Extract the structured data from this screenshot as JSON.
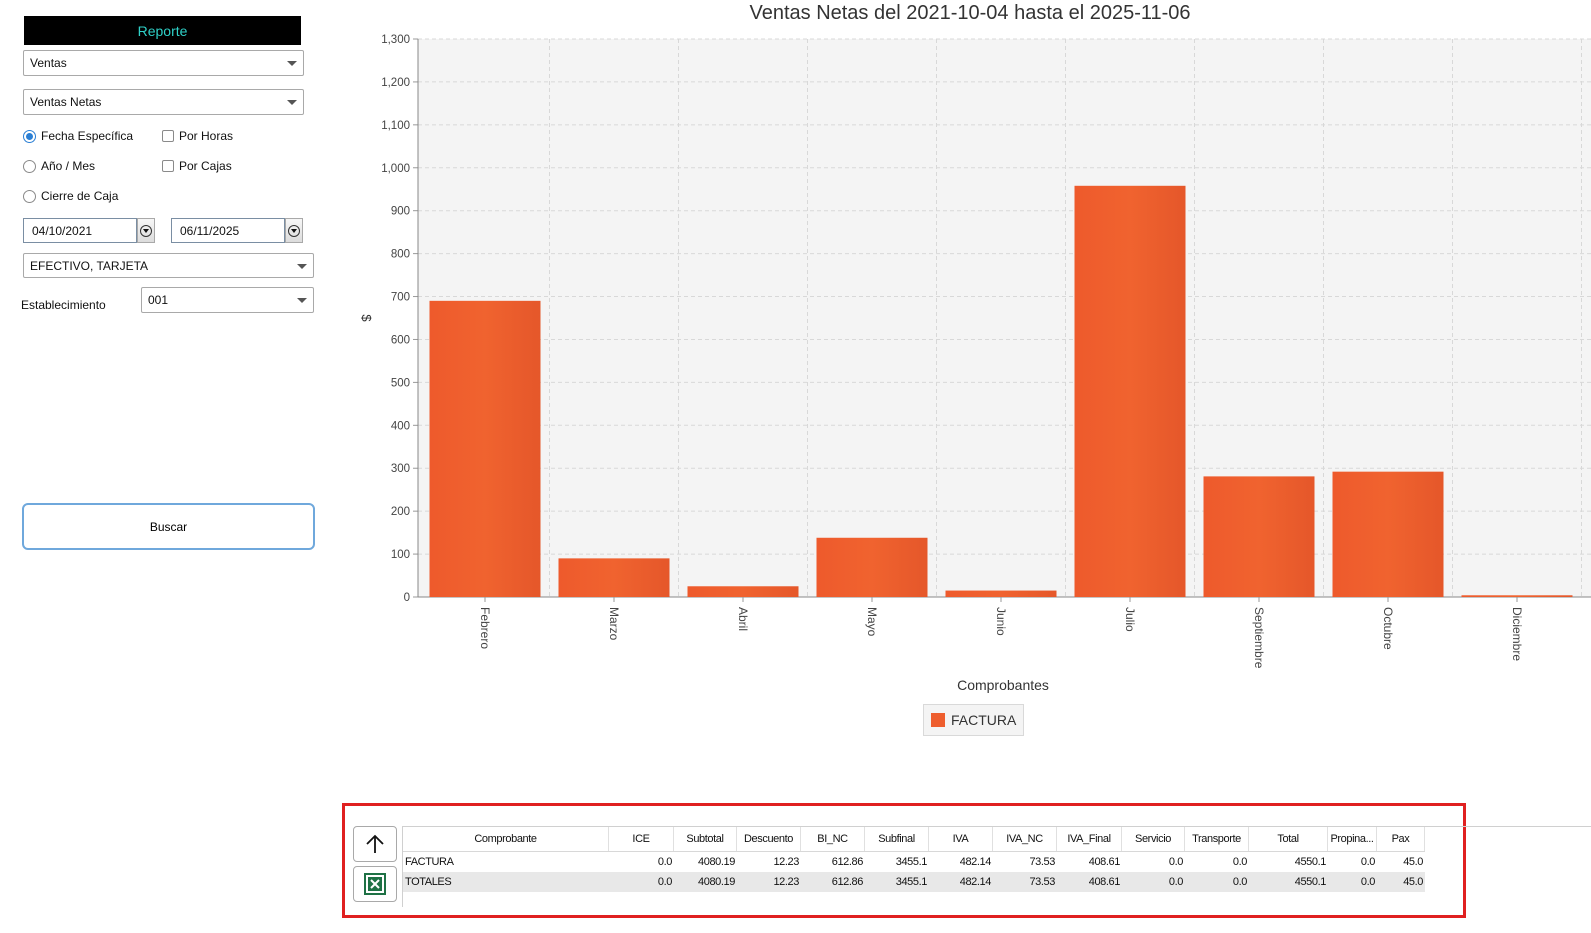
{
  "sidebar": {
    "header": "Reporte",
    "report_type": "Ventas",
    "report_subtype": "Ventas Netas",
    "options": {
      "fecha_especifica": "Fecha Específica",
      "anio_mes": "Año / Mes",
      "cierre_caja": "Cierre de Caja",
      "por_horas": "Por Horas",
      "por_cajas": "Por Cajas",
      "selected": "fecha_especifica"
    },
    "date_from": "04/10/2021",
    "date_to": "06/11/2025",
    "payment_methods": "EFECTIVO, TARJETA",
    "establecimiento_label": "Establecimiento",
    "establecimiento_value": "001",
    "buscar_label": "Buscar"
  },
  "chart_data": {
    "type": "bar",
    "title": "Ventas Netas del 2021-10-04 hasta el 2025-11-06",
    "xlabel": "Comprobantes",
    "ylabel": "$",
    "ylim": [
      0,
      1300
    ],
    "yticks": [
      "0",
      "100",
      "200",
      "300",
      "400",
      "500",
      "600",
      "700",
      "800",
      "900",
      "1,000",
      "1,100",
      "1,200",
      "1,300"
    ],
    "categories": [
      "Febrero",
      "Marzo",
      "Abril",
      "Mayo",
      "Junio",
      "Julio",
      "Septiembre",
      "Octubre",
      "Diciembre"
    ],
    "series": [
      {
        "name": "FACTURA",
        "values": [
          690,
          90,
          25,
          138,
          15,
          958,
          281,
          292,
          4
        ]
      }
    ],
    "grid": true,
    "legend": "bottom-center",
    "color": "#ee5e2e"
  },
  "table": {
    "columns": [
      "Comprobante",
      "ICE",
      "Subtotal",
      "Descuento",
      "BI_NC",
      "Subfinal",
      "IVA",
      "IVA_NC",
      "IVA_Final",
      "Servicio",
      "Transporte",
      "Total",
      "Propina...",
      "Pax"
    ],
    "rows": [
      [
        "FACTURA",
        "0.0",
        "4080.19",
        "12.23",
        "612.86",
        "3455.1",
        "482.14",
        "73.53",
        "408.61",
        "0.0",
        "0.0",
        "4550.1",
        "0.0",
        "45.0"
      ],
      [
        "TOTALES",
        "0.0",
        "4080.19",
        "12.23",
        "612.86",
        "3455.1",
        "482.14",
        "73.53",
        "408.61",
        "0.0",
        "0.0",
        "4550.1",
        "0.0",
        "45.0"
      ]
    ]
  },
  "icons": {
    "scroll_top": "arrow-up-icon",
    "export_excel": "excel-icon",
    "excel_color": "#1e7145"
  }
}
